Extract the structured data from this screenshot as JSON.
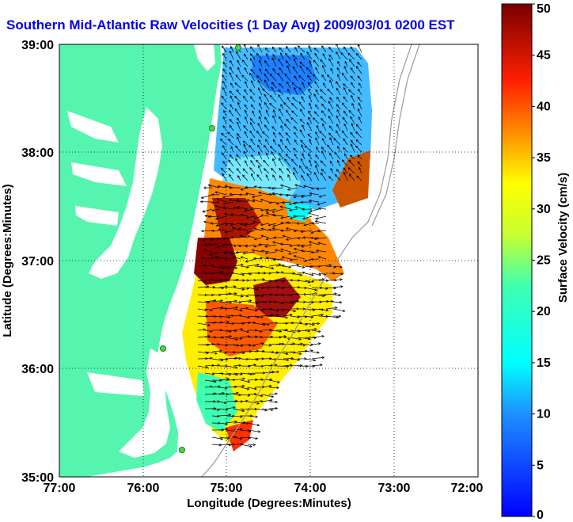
{
  "title": "Southern Mid-Atlantic Raw Velocities (1 Day Avg) 2009/03/01 0200 EST",
  "map": {
    "xlabel": "Longitude (Degrees:Minutes)",
    "ylabel": "Latitude (Degrees:Minutes)",
    "x_ticks": [
      "77:00",
      "76:00",
      "75:00",
      "74:00",
      "73:00",
      "72:00"
    ],
    "y_ticks": [
      "39:00",
      "38:00",
      "37:00",
      "36:00",
      "35:00"
    ],
    "grid": "dotted",
    "colors": {
      "land": "#55f5b0",
      "water": "#ffffff",
      "bathymetry": "#9a9a9a",
      "station": "#44dd44"
    }
  },
  "colorbar": {
    "label": "Surface Velocity (cm/s)",
    "ticks": [
      "0",
      "5",
      "10",
      "15",
      "20",
      "25",
      "30",
      "35",
      "40",
      "45",
      "50"
    ],
    "range": [
      0,
      50
    ],
    "colormap": "jet"
  }
}
